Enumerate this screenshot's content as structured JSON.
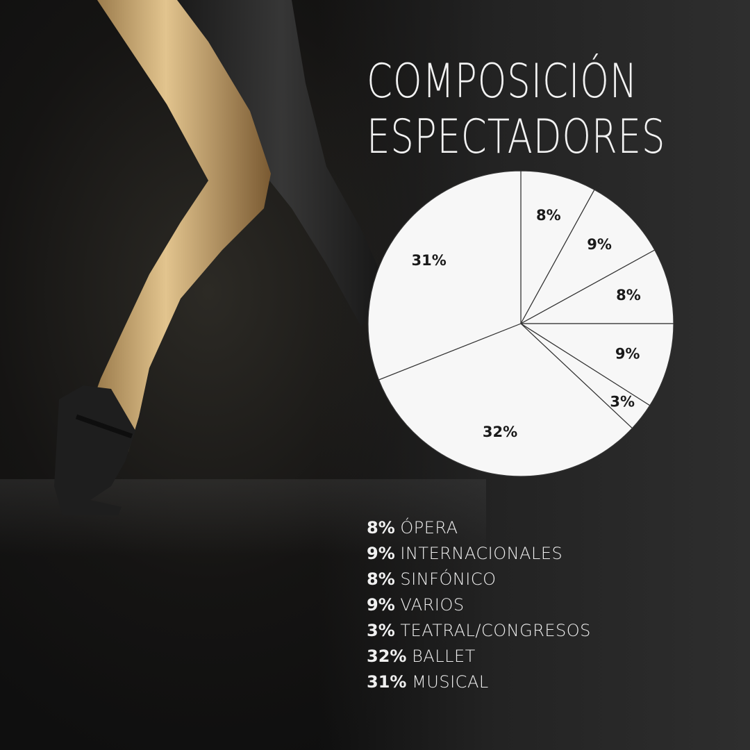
{
  "title_lines": [
    "COMPOSICIÓN",
    "ESPECTADORES"
  ],
  "colors": {
    "background": "#1b1b1b",
    "pie_fill": "#f7f7f7",
    "pie_stroke": "#333333",
    "text": "#f0f0f0"
  },
  "chart_data": {
    "type": "pie",
    "title": "COMPOSICIÓN ESPECTADORES",
    "slices": [
      {
        "label": "ÓPERA",
        "value": 8,
        "display": "8%"
      },
      {
        "label": "INTERNACIONALES",
        "value": 9,
        "display": "9%"
      },
      {
        "label": "SINFÓNICO",
        "value": 8,
        "display": "8%"
      },
      {
        "label": "VARIOS",
        "value": 9,
        "display": "9%"
      },
      {
        "label": "TEATRAL/CONGRESOS",
        "value": 3,
        "display": "3%"
      },
      {
        "label": "BALLET",
        "value": 32,
        "display": "32%"
      },
      {
        "label": "MUSICAL",
        "value": 31,
        "display": "31%"
      }
    ],
    "start": "top",
    "direction": "clockwise",
    "legend_position": "bottom"
  }
}
